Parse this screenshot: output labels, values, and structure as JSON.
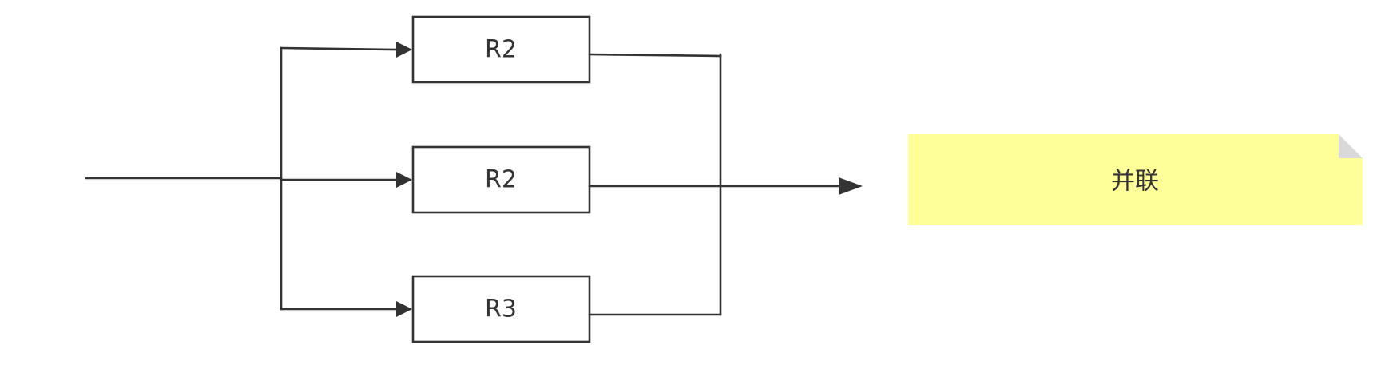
{
  "resistors": [
    {
      "label": "R2"
    },
    {
      "label": "R2"
    },
    {
      "label": "R3"
    }
  ],
  "note": {
    "text": "并联",
    "fill_color": "#ffff99",
    "fold_color": "#d9d9d9"
  },
  "colors": {
    "line": "#333333",
    "box_fill": "#ffffff"
  }
}
